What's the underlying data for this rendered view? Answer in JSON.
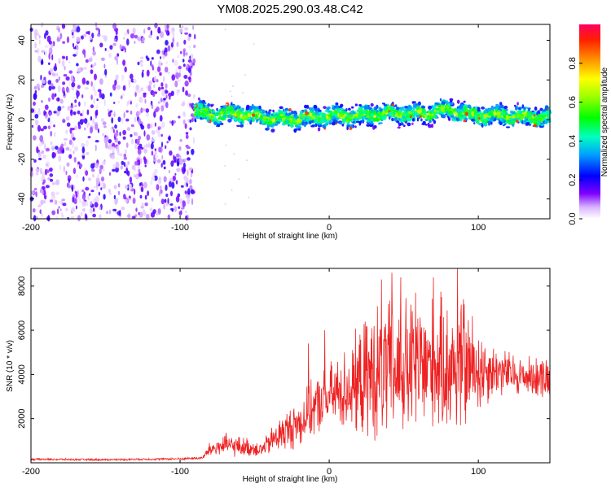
{
  "title": "YM08.2025.290.03.48.C42",
  "chart_data": [
    {
      "type": "heatmap",
      "title": "YM08.2025.290.03.48.C42",
      "xlabel": "Height of straight line (km)",
      "ylabel": "Frequency (Hz)",
      "xlim": [
        -200,
        148
      ],
      "ylim": [
        -50,
        48
      ],
      "xticks": [
        -200,
        -100,
        0,
        100
      ],
      "yticks": [
        -40,
        -20,
        0,
        20,
        40
      ],
      "x_tick_labels": [
        "-200",
        "-100",
        "0",
        "100"
      ],
      "y_tick_labels": [
        "-40",
        "-20",
        "0",
        "20",
        "40"
      ],
      "noise_region_x": [
        -200,
        -90
      ],
      "signal_band_center_hz": [
        {
          "x": -90,
          "y": 4
        },
        {
          "x": -75,
          "y": 2
        },
        {
          "x": -60,
          "y": 3
        },
        {
          "x": -45,
          "y": 1
        },
        {
          "x": -30,
          "y": 0
        },
        {
          "x": -15,
          "y": 1
        },
        {
          "x": 0,
          "y": 2
        },
        {
          "x": 20,
          "y": 2
        },
        {
          "x": 40,
          "y": 3
        },
        {
          "x": 60,
          "y": 3
        },
        {
          "x": 80,
          "y": 5
        },
        {
          "x": 100,
          "y": 2
        },
        {
          "x": 120,
          "y": 2
        },
        {
          "x": 148,
          "y": 1
        }
      ],
      "colorbar": {
        "label": "Normalized spectral amplitude",
        "range": [
          0,
          1
        ],
        "ticks": [
          0.0,
          0.2,
          0.4,
          0.6,
          0.8
        ],
        "tick_labels": [
          "0.0",
          "0.2",
          "0.4",
          "0.6",
          "0.8"
        ],
        "colormap": "rainbow"
      }
    },
    {
      "type": "line",
      "xlabel": "Height of straight line (km)",
      "ylabel": "SNR (10 * v/v)",
      "xlim": [
        -200,
        148
      ],
      "ylim": [
        0,
        8800
      ],
      "xticks": [
        -200,
        -100,
        0,
        100
      ],
      "yticks": [
        2000,
        4000,
        6000,
        8000
      ],
      "x_tick_labels": [
        "-200",
        "-100",
        "0",
        "100"
      ],
      "y_tick_labels": [
        "2000",
        "4000",
        "6000",
        "8000"
      ],
      "series": [
        {
          "name": "SNR",
          "color": "#ee2222",
          "envelope": [
            {
              "x": -200,
              "mean": 160,
              "amp": 60
            },
            {
              "x": -150,
              "mean": 140,
              "amp": 50
            },
            {
              "x": -100,
              "mean": 180,
              "amp": 60
            },
            {
              "x": -85,
              "mean": 220,
              "amp": 80
            },
            {
              "x": -80,
              "mean": 600,
              "amp": 400
            },
            {
              "x": -70,
              "mean": 800,
              "amp": 600
            },
            {
              "x": -55,
              "mean": 700,
              "amp": 500
            },
            {
              "x": -45,
              "mean": 600,
              "amp": 400
            },
            {
              "x": -35,
              "mean": 1200,
              "amp": 900
            },
            {
              "x": -20,
              "mean": 1800,
              "amp": 1300
            },
            {
              "x": -10,
              "mean": 2500,
              "amp": 1500
            },
            {
              "x": 0,
              "mean": 3000,
              "amp": 1700
            },
            {
              "x": 15,
              "mean": 3400,
              "amp": 2400
            },
            {
              "x": 30,
              "mean": 4000,
              "amp": 3600
            },
            {
              "x": 50,
              "mean": 4200,
              "amp": 3800
            },
            {
              "x": 70,
              "mean": 4400,
              "amp": 3500
            },
            {
              "x": 90,
              "mean": 4300,
              "amp": 3600
            },
            {
              "x": 110,
              "mean": 4200,
              "amp": 1400
            },
            {
              "x": 130,
              "mean": 3900,
              "amp": 1000
            },
            {
              "x": 148,
              "mean": 3900,
              "amp": 1200
            }
          ],
          "peaks": [
            {
              "x": 35,
              "y": 8300
            },
            {
              "x": 42,
              "y": 8600
            },
            {
              "x": 48,
              "y": 8400
            },
            {
              "x": 58,
              "y": 7700
            },
            {
              "x": 70,
              "y": 8400
            },
            {
              "x": 86,
              "y": 8800
            },
            {
              "x": 90,
              "y": 7400
            },
            {
              "x": -14,
              "y": 5400
            },
            {
              "x": -3,
              "y": 6000
            }
          ]
        }
      ]
    }
  ]
}
